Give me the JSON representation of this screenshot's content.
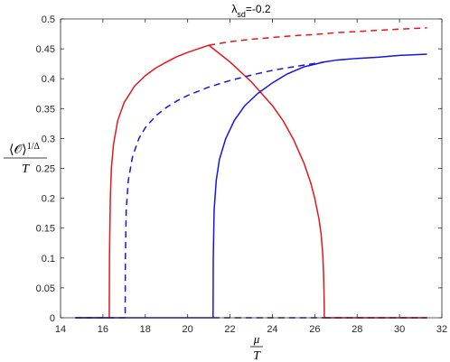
{
  "chart_data": {
    "type": "line",
    "title": {
      "symbol": "λ",
      "subscript": "sd",
      "value": "=-0.2"
    },
    "ylabel": {
      "numerator": "⟨𝒪⟩",
      "exponent": "1/Δ",
      "denominator": "T"
    },
    "xlabel": {
      "numerator": "μ",
      "denominator": "T"
    },
    "xlim": [
      14,
      32
    ],
    "ylim": [
      0,
      0.5
    ],
    "xticks": [
      14,
      16,
      18,
      20,
      22,
      24,
      26,
      28,
      30,
      32
    ],
    "yticks": [
      0,
      0.05,
      0.1,
      0.15,
      0.2,
      0.25,
      0.3,
      0.35,
      0.4,
      0.45,
      0.5
    ],
    "xtick_labels": [
      "14",
      "16",
      "18",
      "20",
      "22",
      "24",
      "26",
      "28",
      "30",
      "32"
    ],
    "ytick_labels": [
      "0",
      "0.05",
      "0.1",
      "0.15",
      "0.2",
      "0.25",
      "0.3",
      "0.35",
      "0.4",
      "0.45",
      "0.5"
    ],
    "grid": false,
    "series": [
      {
        "color": "#e3171c",
        "dash": false,
        "x": [
          14.7,
          16.3,
          16.3,
          16.31,
          16.35,
          16.4,
          16.5,
          16.7,
          17.0,
          17.5,
          18.0,
          18.5,
          19.0,
          19.5,
          20.0,
          20.5,
          21.0
        ],
        "y": [
          0,
          0,
          0.002,
          0.1,
          0.2,
          0.25,
          0.29,
          0.33,
          0.36,
          0.388,
          0.405,
          0.418,
          0.428,
          0.437,
          0.444,
          0.45,
          0.456
        ]
      },
      {
        "color": "#e3171c",
        "dash": false,
        "x": [
          21.0,
          22.0,
          23.0,
          24.0,
          24.5,
          25.0,
          25.5,
          25.8,
          26.0,
          26.2,
          26.3,
          26.38,
          26.42,
          26.45,
          26.45,
          31.3
        ],
        "y": [
          0.456,
          0.428,
          0.395,
          0.355,
          0.33,
          0.298,
          0.258,
          0.227,
          0.2,
          0.165,
          0.14,
          0.105,
          0.07,
          0.02,
          0,
          0
        ]
      },
      {
        "color": "#e3171c",
        "dash": true,
        "x": [
          21.0,
          22.0,
          23.0,
          24.0,
          25.0,
          26.0,
          27.0,
          28.0,
          29.0,
          30.0,
          31.3
        ],
        "y": [
          0.456,
          0.462,
          0.466,
          0.469,
          0.472,
          0.474,
          0.477,
          0.479,
          0.481,
          0.483,
          0.485
        ]
      },
      {
        "color": "#1414e6",
        "dash": true,
        "x": [
          14.7,
          17.05,
          17.05,
          17.06,
          17.1,
          17.2,
          17.4,
          17.7,
          18.0,
          18.5,
          19.0,
          19.5,
          20.0,
          21.0,
          22.0,
          23.0,
          24.0,
          25.0,
          26.45
        ],
        "y": [
          0,
          0,
          0.002,
          0.1,
          0.18,
          0.23,
          0.27,
          0.3,
          0.318,
          0.338,
          0.352,
          0.363,
          0.372,
          0.386,
          0.397,
          0.406,
          0.414,
          0.42,
          0.428
        ]
      },
      {
        "color": "#1414e6",
        "dash": true,
        "x": [
          21.2,
          26.45
        ],
        "y": [
          0,
          0
        ]
      },
      {
        "color": "#1414e6",
        "dash": false,
        "x": [
          14.7,
          21.2
        ],
        "y": [
          0,
          0
        ]
      },
      {
        "color": "#1414e6",
        "dash": false,
        "x": [
          21.2,
          21.2,
          21.21,
          21.25,
          21.35,
          21.5,
          21.8,
          22.2,
          22.7,
          23.3,
          24.0,
          24.7,
          25.5,
          26.45,
          27.0,
          28.0,
          29.0,
          30.0,
          31.3
        ],
        "y": [
          0,
          0.002,
          0.1,
          0.18,
          0.23,
          0.265,
          0.3,
          0.33,
          0.355,
          0.375,
          0.393,
          0.408,
          0.42,
          0.428,
          0.431,
          0.434,
          0.436,
          0.439,
          0.441
        ]
      },
      {
        "color": "#1414e6",
        "dash": true,
        "x": [
          26.45,
          31.3
        ],
        "y": [
          0,
          0
        ]
      },
      {
        "color": "#e3171c",
        "dash": true,
        "x": [
          26.45,
          31.3
        ],
        "y": [
          0,
          0
        ]
      }
    ]
  }
}
